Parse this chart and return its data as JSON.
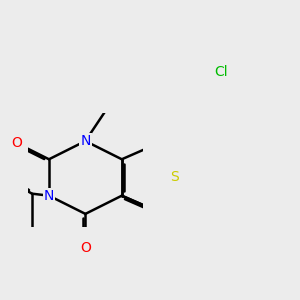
{
  "bg_color": "#ececec",
  "bond_color": "#000000",
  "bond_width": 1.8,
  "atom_colors": {
    "N": "#0000ff",
    "O": "#ff0000",
    "S": "#cccc00",
    "Cl": "#00bb00",
    "C": "#000000"
  },
  "font_size": 10
}
